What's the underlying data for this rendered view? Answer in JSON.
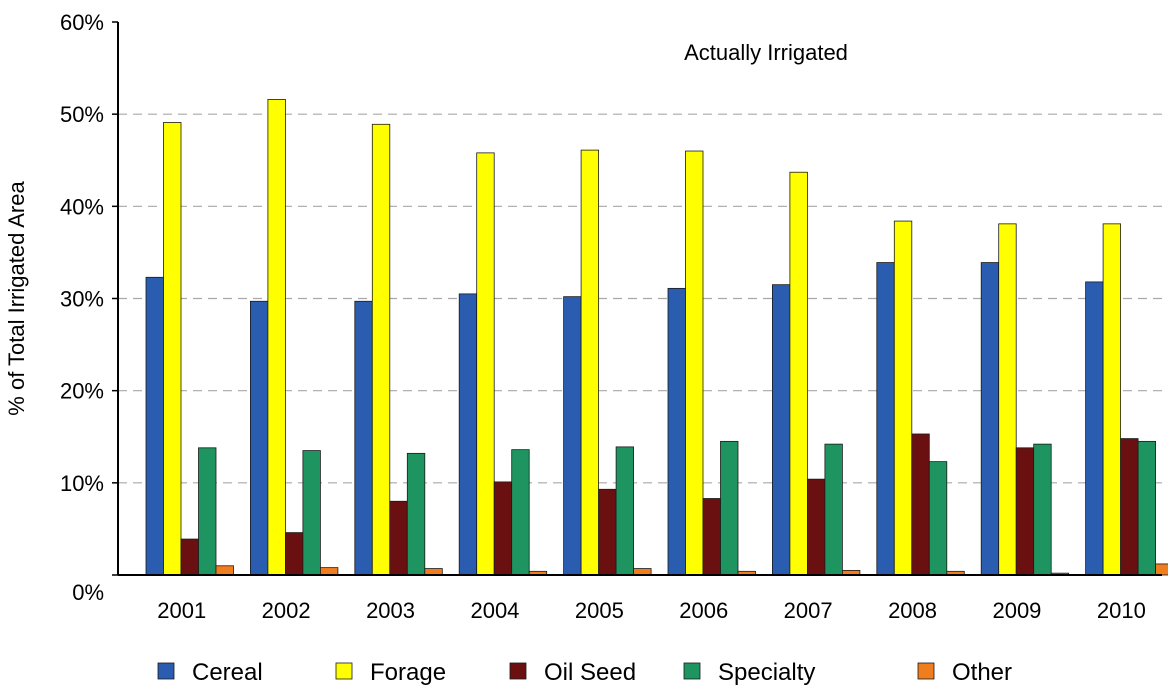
{
  "chart_data": {
    "type": "bar",
    "annotation": "Actually Irrigated",
    "ylabel": "% of Total Irrigated Area",
    "xlabel": "",
    "ylim": [
      0,
      60
    ],
    "yticks": [
      0,
      10,
      20,
      30,
      40,
      50,
      60
    ],
    "ytick_labels": [
      "0%",
      "10%",
      "20%",
      "30%",
      "40%",
      "50%",
      "60%"
    ],
    "grid": "horizontal dashed",
    "legend_position": "bottom",
    "categories": [
      "2001",
      "2002",
      "2003",
      "2004",
      "2005",
      "2006",
      "2007",
      "2008",
      "2009",
      "2010"
    ],
    "series": [
      {
        "name": "Cereal",
        "color": "#2a5db0",
        "values": [
          32.3,
          29.7,
          29.7,
          30.5,
          30.2,
          31.1,
          31.5,
          33.9,
          33.9,
          31.8
        ]
      },
      {
        "name": "Forage",
        "color": "#ffff00",
        "values": [
          49.1,
          51.6,
          48.9,
          45.8,
          46.1,
          46.0,
          43.7,
          38.4,
          38.1,
          38.1
        ]
      },
      {
        "name": "Oil Seed",
        "color": "#6b1010",
        "values": [
          3.9,
          4.6,
          8.0,
          10.1,
          9.3,
          8.3,
          10.4,
          15.3,
          13.8,
          14.8
        ]
      },
      {
        "name": "Specialty",
        "color": "#1e9560",
        "values": [
          13.8,
          13.5,
          13.2,
          13.6,
          13.9,
          14.5,
          14.2,
          12.3,
          14.2,
          14.5
        ]
      },
      {
        "name": "Other",
        "color": "#f07d1e",
        "values": [
          1.0,
          0.8,
          0.7,
          0.4,
          0.7,
          0.4,
          0.5,
          0.4,
          0.2,
          1.2
        ]
      }
    ]
  }
}
